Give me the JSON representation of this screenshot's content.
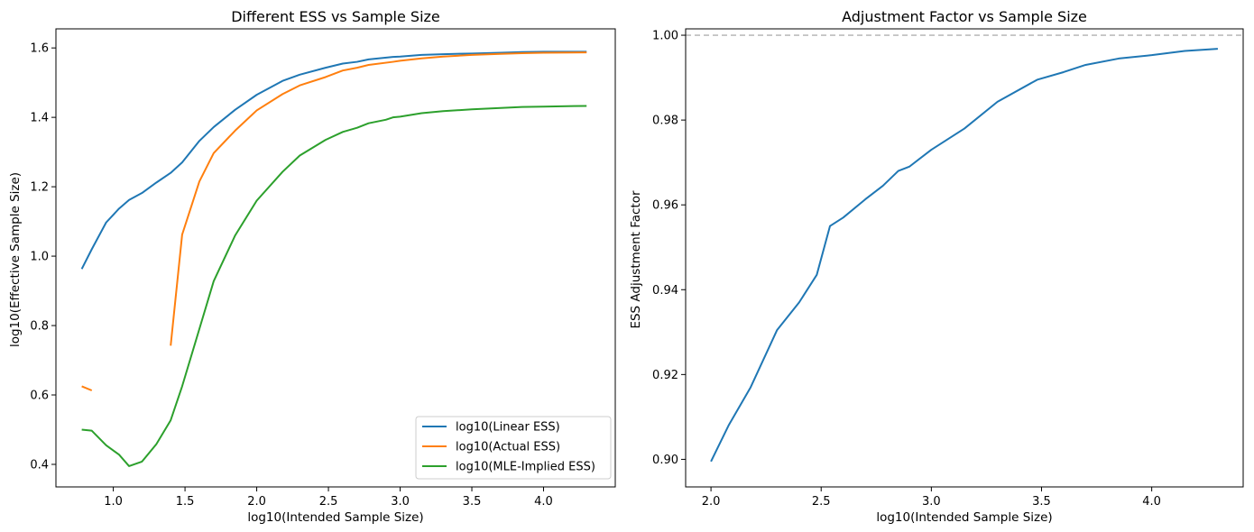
{
  "chart_data": [
    {
      "type": "line",
      "title": "Different ESS vs Sample Size",
      "xlabel": "log10(Intended Sample Size)",
      "ylabel": "log10(Effective Sample Size)",
      "xlim": [
        0.6,
        4.5
      ],
      "ylim": [
        0.335,
        1.655
      ],
      "xticks": [
        "1.0",
        "1.5",
        "2.0",
        "2.5",
        "3.0",
        "3.5",
        "4.0"
      ],
      "yticks": [
        "0.4",
        "0.6",
        "0.8",
        "1.0",
        "1.2",
        "1.4",
        "1.6"
      ],
      "grid": false,
      "legend_position": "lower-right",
      "series": [
        {
          "name": "log10(Linear ESS)",
          "color": "#1f77b4",
          "segments": [
            [
              [
                0.78,
                0.963
              ],
              [
                0.85,
                1.02
              ],
              [
                0.95,
                1.097
              ],
              [
                1.04,
                1.137
              ],
              [
                1.11,
                1.162
              ],
              [
                1.2,
                1.182
              ],
              [
                1.3,
                1.212
              ],
              [
                1.4,
                1.24
              ],
              [
                1.48,
                1.27
              ],
              [
                1.6,
                1.332
              ],
              [
                1.7,
                1.372
              ],
              [
                1.85,
                1.422
              ],
              [
                2.0,
                1.465
              ],
              [
                2.18,
                1.505
              ],
              [
                2.3,
                1.523
              ],
              [
                2.48,
                1.543
              ],
              [
                2.6,
                1.555
              ],
              [
                2.7,
                1.56
              ],
              [
                2.78,
                1.567
              ],
              [
                2.95,
                1.574
              ],
              [
                3.0,
                1.575
              ],
              [
                3.15,
                1.58
              ],
              [
                3.3,
                1.582
              ],
              [
                3.5,
                1.584
              ],
              [
                3.7,
                1.586
              ],
              [
                3.85,
                1.588
              ],
              [
                4.0,
                1.589
              ],
              [
                4.3,
                1.589
              ]
            ]
          ]
        },
        {
          "name": "log10(Actual ESS)",
          "color": "#ff7f0e",
          "segments": [
            [
              [
                0.78,
                0.625
              ],
              [
                0.85,
                0.613
              ]
            ],
            [
              [
                1.4,
                0.742
              ],
              [
                1.48,
                1.062
              ],
              [
                1.6,
                1.215
              ],
              [
                1.7,
                1.297
              ],
              [
                1.85,
                1.362
              ],
              [
                2.0,
                1.42
              ],
              [
                2.18,
                1.467
              ],
              [
                2.3,
                1.492
              ],
              [
                2.48,
                1.516
              ],
              [
                2.6,
                1.535
              ],
              [
                2.7,
                1.543
              ],
              [
                2.78,
                1.551
              ],
              [
                2.95,
                1.56
              ],
              [
                3.0,
                1.563
              ],
              [
                3.15,
                1.57
              ],
              [
                3.3,
                1.575
              ],
              [
                3.5,
                1.58
              ],
              [
                3.7,
                1.583
              ],
              [
                3.85,
                1.585
              ],
              [
                4.0,
                1.586
              ],
              [
                4.3,
                1.587
              ]
            ]
          ]
        },
        {
          "name": "log10(MLE-Implied ESS)",
          "color": "#2ca02c",
          "segments": [
            [
              [
                0.78,
                0.5
              ],
              [
                0.85,
                0.497
              ],
              [
                0.95,
                0.455
              ],
              [
                1.04,
                0.428
              ],
              [
                1.11,
                0.395
              ],
              [
                1.2,
                0.408
              ],
              [
                1.3,
                0.458
              ],
              [
                1.4,
                0.527
              ],
              [
                1.48,
                0.625
              ],
              [
                1.6,
                0.79
              ],
              [
                1.7,
                0.928
              ],
              [
                1.85,
                1.06
              ],
              [
                2.0,
                1.16
              ],
              [
                2.18,
                1.243
              ],
              [
                2.3,
                1.29
              ],
              [
                2.48,
                1.335
              ],
              [
                2.6,
                1.358
              ],
              [
                2.7,
                1.37
              ],
              [
                2.78,
                1.383
              ],
              [
                2.9,
                1.393
              ],
              [
                2.95,
                1.4
              ],
              [
                3.0,
                1.402
              ],
              [
                3.15,
                1.412
              ],
              [
                3.3,
                1.418
              ],
              [
                3.5,
                1.423
              ],
              [
                3.7,
                1.427
              ],
              [
                3.85,
                1.43
              ],
              [
                4.0,
                1.431
              ],
              [
                4.3,
                1.433
              ]
            ]
          ]
        }
      ]
    },
    {
      "type": "line",
      "title": "Adjustment Factor vs Sample Size",
      "xlabel": "log10(Intended Sample Size)",
      "ylabel": "ESS Adjustment Factor",
      "xlim": [
        1.885,
        4.415
      ],
      "ylim": [
        0.8935,
        1.0015
      ],
      "xticks": [
        "2.0",
        "2.5",
        "3.0",
        "3.5",
        "4.0"
      ],
      "yticks": [
        "0.90",
        "0.92",
        "0.94",
        "0.96",
        "0.98",
        "1.00"
      ],
      "grid": false,
      "reference_line": {
        "y": 1.0,
        "style": "dashed",
        "color": "#b0b0b0"
      },
      "series": [
        {
          "name": "",
          "color": "#1f77b4",
          "segments": [
            [
              [
                2.0,
                0.8995
              ],
              [
                2.08,
                0.908
              ],
              [
                2.18,
                0.917
              ],
              [
                2.3,
                0.9305
              ],
              [
                2.4,
                0.937
              ],
              [
                2.48,
                0.9435
              ],
              [
                2.54,
                0.955
              ],
              [
                2.6,
                0.957
              ],
              [
                2.7,
                0.9613
              ],
              [
                2.78,
                0.9645
              ],
              [
                2.85,
                0.968
              ],
              [
                2.9,
                0.969
              ],
              [
                3.0,
                0.973
              ],
              [
                3.15,
                0.978
              ],
              [
                3.3,
                0.9843
              ],
              [
                3.48,
                0.9895
              ],
              [
                3.6,
                0.9913
              ],
              [
                3.7,
                0.993
              ],
              [
                3.85,
                0.9945
              ],
              [
                4.0,
                0.9953
              ],
              [
                4.15,
                0.9963
              ],
              [
                4.3,
                0.9968
              ]
            ]
          ]
        }
      ]
    }
  ]
}
